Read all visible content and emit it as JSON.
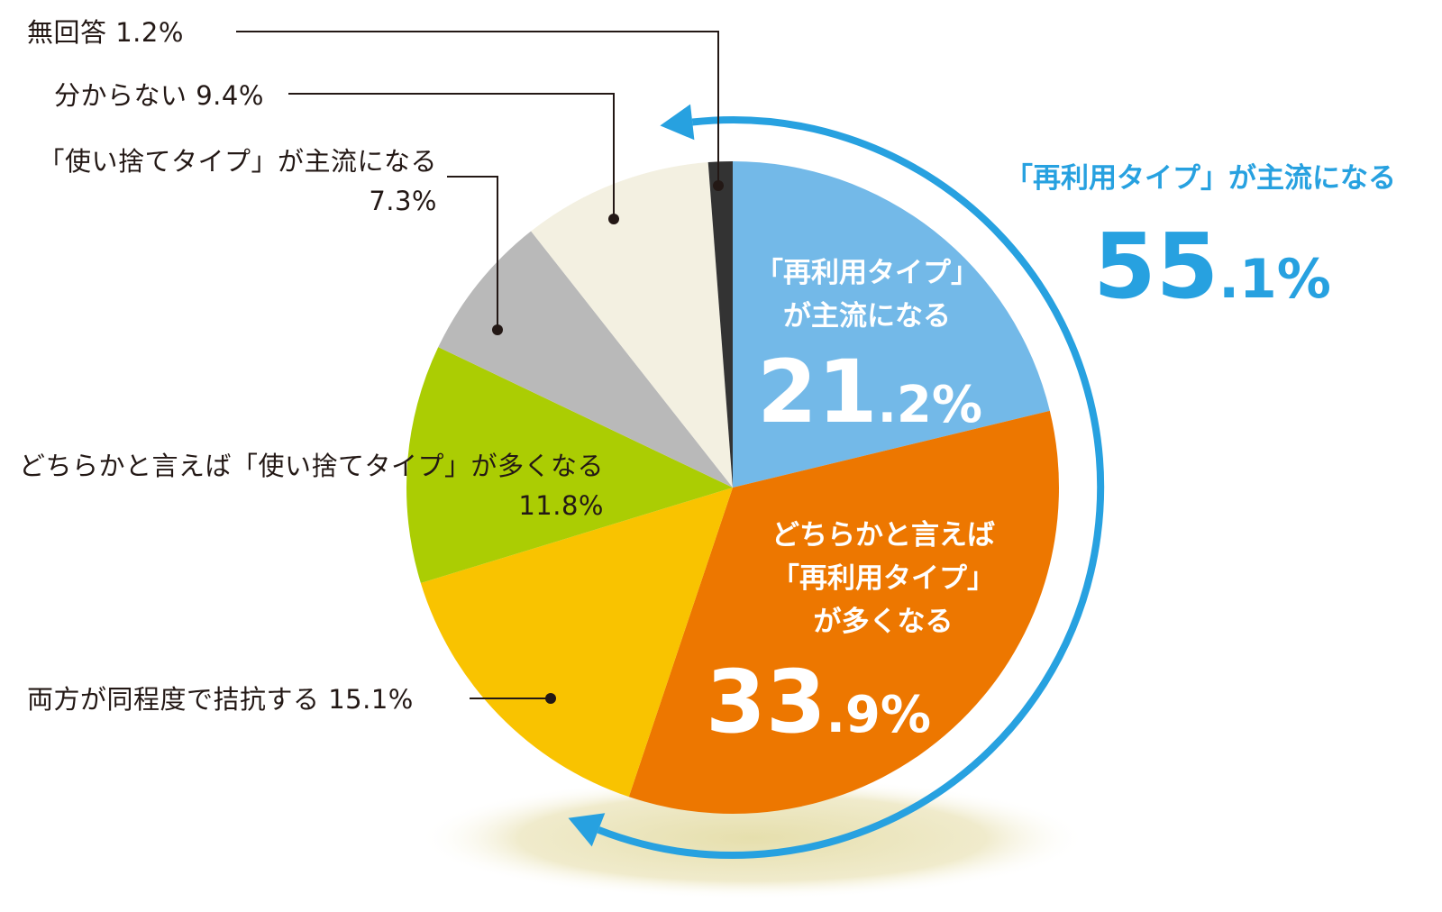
{
  "chart_data": {
    "type": "pie",
    "slices": [
      {
        "name": "「再利用タイプ」が主流になる",
        "value": 21.2,
        "color": "#73b9e8"
      },
      {
        "name": "どちらかと言えば「再利用タイプ」が多くなる",
        "value": 33.9,
        "color": "#ed7700"
      },
      {
        "name": "両方が同程度で拮抗する",
        "value": 15.1,
        "color": "#f9c300"
      },
      {
        "name": "どちらかと言えば「使い捨てタイプ」が多くなる",
        "value": 11.8,
        "color": "#abcd03"
      },
      {
        "name": "「使い捨てタイプ」が主流になる",
        "value": 7.3,
        "color": "#b9b9b9"
      },
      {
        "name": "分からない",
        "value": 9.4,
        "color": "#f3f0e1"
      },
      {
        "name": "無回答",
        "value": 1.2,
        "color": "#333333"
      }
    ],
    "total": {
      "name": "「再利用タイプ」が主流になる",
      "value": 55.1,
      "color": "#27a1e0"
    }
  },
  "labels": {
    "no_answer": "無回答 1.2%",
    "unknown": "分からない 9.4%",
    "disposable_main_line1": "「使い捨てタイプ」が主流になる",
    "disposable_main_line2": "7.3%",
    "disposable_more_line1": "どちらかと言えば「使い捨てタイプ」が多くなる",
    "disposable_more_line2": "11.8%",
    "even": "両方が同程度で拮抗する 15.1%",
    "reuse_main_line1": "「再利用タイプ」",
    "reuse_main_line2": "が主流になる",
    "reuse_main_int": "21",
    "reuse_main_dec": ".2%",
    "reuse_more_line1": "どちらかと言えば",
    "reuse_more_line2": "「再利用タイプ」",
    "reuse_more_line3": "が多くなる",
    "reuse_more_int": "33",
    "reuse_more_dec": ".9%",
    "total_label": "「再利用タイプ」が主流になる",
    "total_int": "55",
    "total_dec": ".1%"
  }
}
